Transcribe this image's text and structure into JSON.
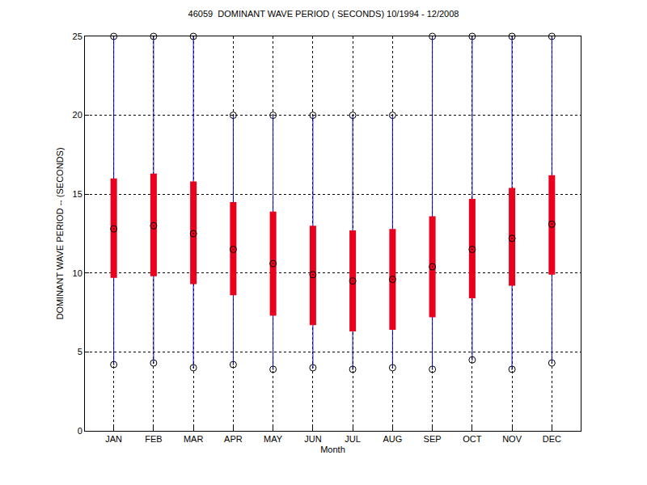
{
  "chart_data": {
    "type": "box",
    "title": "46059  DOMINANT WAVE PERIOD ( SECONDS) 10/1994 - 12/2008",
    "x_label": "Month",
    "y_label": "DOMINANT WAVE PERIOD -- (SECONDS)",
    "categories": [
      "JAN",
      "FEB",
      "MAR",
      "APR",
      "MAY",
      "JUN",
      "JUL",
      "AUG",
      "SEP",
      "OCT",
      "NOV",
      "DEC"
    ],
    "min": [
      4.2,
      4.3,
      4.0,
      4.2,
      3.9,
      4.0,
      3.9,
      4.0,
      3.9,
      4.5,
      3.9,
      4.3
    ],
    "q1": [
      9.7,
      9.8,
      9.3,
      8.6,
      7.3,
      6.7,
      6.3,
      6.4,
      7.2,
      8.4,
      9.2,
      9.9
    ],
    "median": [
      12.8,
      13.0,
      12.5,
      11.5,
      10.6,
      9.9,
      9.5,
      9.6,
      10.4,
      11.5,
      12.2,
      13.1
    ],
    "q3": [
      16.0,
      16.3,
      15.8,
      14.5,
      13.9,
      13.0,
      12.7,
      12.8,
      13.6,
      14.7,
      15.4,
      16.2
    ],
    "max": [
      25,
      25,
      25,
      20,
      20,
      20,
      20,
      20,
      25,
      25,
      25,
      25
    ],
    "color": "#e8001c",
    "marker": "circle-open-dot",
    "ylim": [
      0,
      25
    ],
    "yticks": [
      0,
      5,
      10,
      15,
      20,
      25
    ],
    "grid": true
  }
}
